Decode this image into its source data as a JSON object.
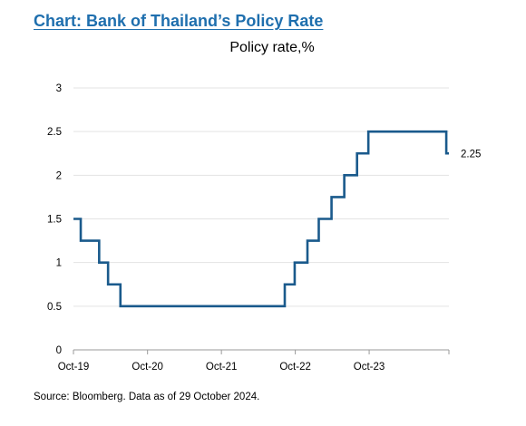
{
  "header": {
    "title": "Chart: Bank of Thailand’s Policy Rate",
    "subtitle": "Policy rate,%"
  },
  "footer": {
    "source": "Source: Bloomberg. Data as of 29 October 2024."
  },
  "chart_data": {
    "type": "line",
    "title": "Chart: Bank of Thailand’s Policy Rate",
    "ylabel": "Policy rate,%",
    "xlabel": "",
    "ylim": [
      0,
      3
    ],
    "yticks": [
      0,
      0.5,
      1,
      1.5,
      2,
      2.5,
      3
    ],
    "ytick_labels": [
      "0",
      "0.5",
      "1",
      "1.5",
      "2",
      "2.5",
      "3"
    ],
    "xlim": [
      "2019-10-01",
      "2024-10-29"
    ],
    "xticks": [
      "2019-10-01",
      "2020-10-01",
      "2021-10-01",
      "2022-10-01",
      "2023-10-01"
    ],
    "xtick_labels": [
      "Oct-19",
      "Oct-20",
      "Oct-21",
      "Oct-22",
      "Oct-23"
    ],
    "grid": true,
    "step": true,
    "line_color": "#1a5a8c",
    "series": [
      {
        "x": [
          "2019-10-01",
          "2019-11-06",
          "2020-02-05",
          "2020-03-20",
          "2020-05-20",
          "2022-08-10",
          "2022-09-28",
          "2022-11-30",
          "2023-01-25",
          "2023-03-29",
          "2023-05-31",
          "2023-08-02",
          "2023-09-27",
          "2024-10-16",
          "2024-10-29"
        ],
        "values": [
          1.5,
          1.25,
          1.0,
          0.75,
          0.5,
          0.75,
          1.0,
          1.25,
          1.5,
          1.75,
          2.0,
          2.25,
          2.5,
          2.25,
          2.25
        ]
      }
    ],
    "end_label": "2.25"
  }
}
